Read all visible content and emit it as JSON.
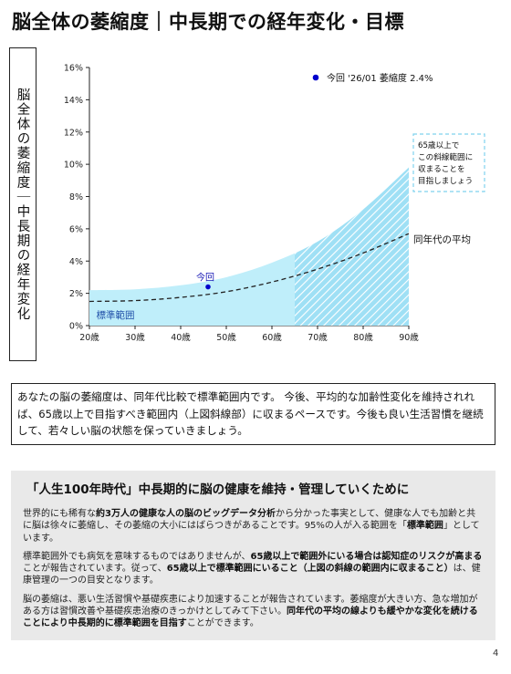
{
  "page": {
    "title": "脳全体の萎縮度｜中長期での経年変化・目標",
    "vertical_label": "脳全体の萎縮度｜中長期の経年変化",
    "page_number": "4"
  },
  "chart_data": {
    "type": "area",
    "xlim": [
      20,
      90
    ],
    "ylim": [
      0,
      16
    ],
    "x_ticks": [
      20,
      30,
      40,
      50,
      60,
      70,
      80,
      90
    ],
    "x_tick_labels": [
      "20歳",
      "30歳",
      "40歳",
      "50歳",
      "60歳",
      "70歳",
      "80歳",
      "90歳"
    ],
    "y_ticks": [
      0,
      2,
      4,
      6,
      8,
      10,
      12,
      14,
      16
    ],
    "y_tick_labels": [
      "0%",
      "2%",
      "4%",
      "6%",
      "8%",
      "10%",
      "12%",
      "14%",
      "16%"
    ],
    "legend_label": "今回 '26/01 萎縮度 2.4%",
    "normal_range": {
      "label": "標準範囲",
      "x": [
        20,
        30,
        40,
        50,
        60,
        70,
        80,
        90
      ],
      "lower": [
        0,
        0,
        0,
        0,
        0,
        0,
        0,
        0
      ],
      "upper": [
        2.2,
        2.25,
        2.5,
        3.0,
        3.9,
        5.2,
        7.2,
        9.8
      ]
    },
    "age_average": {
      "label": "同年代の平均",
      "x": [
        20,
        30,
        40,
        50,
        60,
        70,
        80,
        90
      ],
      "y": [
        1.5,
        1.55,
        1.75,
        2.1,
        2.7,
        3.5,
        4.5,
        5.7
      ]
    },
    "hatched_region": {
      "x_start": 65,
      "x_end": 90
    },
    "target_note": [
      "65歳以上で",
      "この斜線範囲に",
      "収まることを",
      "目指しましょう"
    ],
    "current_point": {
      "x": 46,
      "y": 2.4,
      "label": "今回"
    },
    "colors": {
      "range_fill": "#bfeefa",
      "point": "#0000cc",
      "point_label": "#1a1ab5",
      "range_label": "#1f4fa8",
      "dashed_box": "#7fd2ee"
    }
  },
  "summary": "あなたの脳の萎縮度は、同年代比較で標準範囲内です。 今後、平均的な加齢性変化を維持されれば、65歳以上で目指すべき範囲内（上図斜線部）に収まるペースです。今後も良い生活習慣を継続して、若々しい脳の状態を保っていきましょう。",
  "info": {
    "heading": "「人生100年時代」中長期的に脳の健康を維持・管理していくために",
    "p1": {
      "a": "世界的にも稀有な",
      "b": "約3万人の健康な人の脳のビッグデータ分析",
      "c": "から分かった事実として、健康な人でも加齢と共に脳は徐々に萎縮し、その萎縮の大小にはばらつきがあることです。95%の人が入る範囲を「",
      "d": "標準範囲",
      "e": "」としています。"
    },
    "p2": {
      "a": "標準範囲外でも病気を意味するものではありませんが、",
      "b": "65歳以上で範囲外にいる場合は認知症のリスクが高まる",
      "c": "ことが報告されています。従って、",
      "d": "65歳以上で標準範囲にいること（上図の斜線の範囲内に収まること）",
      "e": "は、健康管理の一つの目安となります。"
    },
    "p3": {
      "a": "脳の萎縮は、悪い生活習慣や基礎疾患により加速することが報告されています。萎縮度が大きい方、急な増加がある方は習慣改善や基礎疾患治療のきっかけとしてみて下さい。",
      "b": "同年代の平均の線よりも緩やかな変化を続けることにより中長期的に標準範囲を目指す",
      "c": "ことができます。"
    }
  }
}
